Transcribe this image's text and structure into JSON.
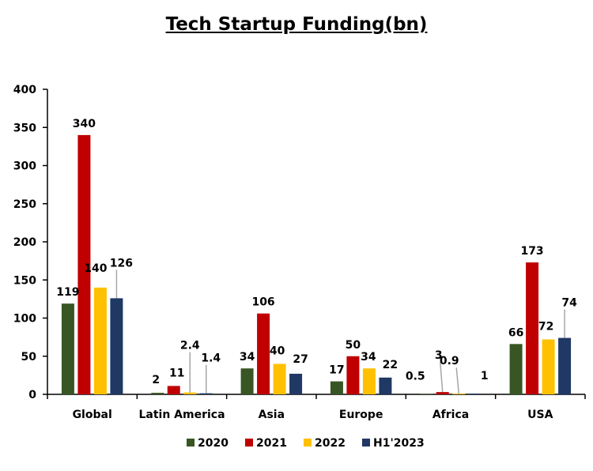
{
  "chart_data": {
    "type": "bar",
    "title": "Tech Startup Funding(bn)",
    "xlabel": "",
    "ylabel": "",
    "ylim": [
      0,
      400
    ],
    "yticks": [
      0,
      50,
      100,
      150,
      200,
      250,
      300,
      350,
      400
    ],
    "grid": false,
    "legend_position": "bottom",
    "categories": [
      "Global",
      "Latin America",
      "Asia",
      "Europe",
      "Africa",
      "USA"
    ],
    "series": [
      {
        "name": "2020",
        "color": "#375623",
        "values": [
          119,
          2,
          34,
          17,
          0.5,
          66
        ],
        "labels": [
          "119",
          "2",
          "34",
          "17",
          "0.5",
          "66"
        ]
      },
      {
        "name": "2021",
        "color": "#C00000",
        "values": [
          340,
          11,
          106,
          50,
          3,
          173
        ],
        "labels": [
          "340",
          "11",
          "106",
          "50",
          "3",
          "173"
        ]
      },
      {
        "name": "2022",
        "color": "#FFC000",
        "values": [
          140,
          2.4,
          40,
          34,
          0.9,
          72
        ],
        "labels": [
          "140",
          "2.4",
          "40",
          "34",
          "0.9",
          "72"
        ]
      },
      {
        "name": "H1'2023",
        "color": "#1F3864",
        "values": [
          126,
          1.4,
          27,
          22,
          1,
          74
        ],
        "labels": [
          "126",
          "1.4",
          "27",
          "22",
          "1",
          "74"
        ]
      }
    ]
  }
}
